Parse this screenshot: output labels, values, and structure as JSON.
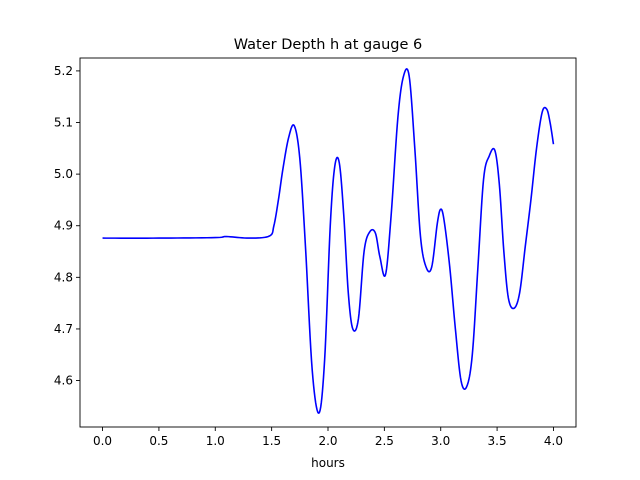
{
  "chart_data": {
    "type": "line",
    "title": "Water Depth h at gauge 6",
    "xlabel": "hours",
    "ylabel": "",
    "xlim": [
      -0.2,
      4.2
    ],
    "ylim": [
      4.51,
      5.225
    ],
    "xticks": [
      0.0,
      0.5,
      1.0,
      1.5,
      2.0,
      2.5,
      3.0,
      3.5,
      4.0
    ],
    "xtick_labels": [
      "0.0",
      "0.5",
      "1.0",
      "1.5",
      "2.0",
      "2.5",
      "3.0",
      "3.5",
      "4.0"
    ],
    "yticks": [
      4.6,
      4.7,
      4.8,
      4.9,
      5.0,
      5.1,
      5.2
    ],
    "ytick_labels": [
      "4.6",
      "4.7",
      "4.8",
      "4.9",
      "5.0",
      "5.1",
      "5.2"
    ],
    "grid": false,
    "series": [
      {
        "color": "#0000ff",
        "x": [
          0.0,
          0.5,
          1.0,
          1.1,
          1.3,
          1.48,
          1.52,
          1.56,
          1.6,
          1.65,
          1.7,
          1.75,
          1.8,
          1.86,
          1.92,
          1.97,
          2.02,
          2.06,
          2.1,
          2.14,
          2.18,
          2.22,
          2.27,
          2.32,
          2.37,
          2.42,
          2.46,
          2.51,
          2.56,
          2.62,
          2.67,
          2.72,
          2.77,
          2.82,
          2.87,
          2.92,
          2.97,
          3.0,
          3.03,
          3.08,
          3.13,
          3.18,
          3.23,
          3.28,
          3.33,
          3.38,
          3.43,
          3.48,
          3.52,
          3.56,
          3.6,
          3.65,
          3.7,
          3.75,
          3.8,
          3.85,
          3.9,
          3.94,
          3.97,
          4.0
        ],
        "y": [
          4.876,
          4.876,
          4.877,
          4.879,
          4.876,
          4.88,
          4.9,
          4.95,
          5.01,
          5.07,
          5.094,
          5.03,
          4.86,
          4.62,
          4.537,
          4.64,
          4.9,
          5.015,
          5.022,
          4.92,
          4.77,
          4.7,
          4.72,
          4.85,
          4.888,
          4.886,
          4.84,
          4.805,
          4.92,
          5.11,
          5.19,
          5.19,
          5.05,
          4.88,
          4.82,
          4.82,
          4.905,
          4.932,
          4.91,
          4.82,
          4.7,
          4.6,
          4.588,
          4.65,
          4.82,
          4.99,
          5.035,
          5.046,
          4.98,
          4.85,
          4.76,
          4.74,
          4.77,
          4.86,
          4.95,
          5.05,
          5.12,
          5.126,
          5.1,
          5.058
        ]
      }
    ]
  }
}
